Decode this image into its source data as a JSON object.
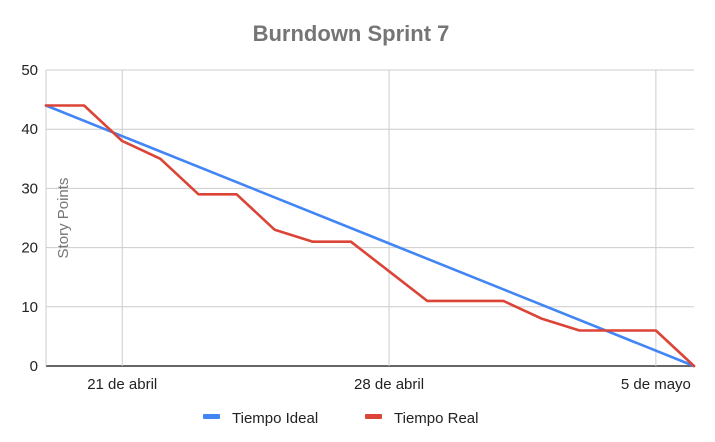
{
  "chart_data": {
    "type": "line",
    "title": "Burndown Sprint 7",
    "xlabel": "",
    "ylabel": "Story Points",
    "x_range": [
      "2024-04-18",
      "2024-05-05"
    ],
    "ylim": [
      0,
      50
    ],
    "y_ticks": [
      0,
      10,
      20,
      30,
      40,
      50
    ],
    "x_ticks": [
      {
        "label": "21 de abril",
        "x": "2024-04-20"
      },
      {
        "label": "28 de abril",
        "x": "2024-04-27"
      },
      {
        "label": "5 de mayo",
        "x": "2024-05-04"
      }
    ],
    "grid": true,
    "legend_position": "bottom",
    "series": [
      {
        "name": "Tiempo Ideal",
        "color": "#4285F4",
        "points": [
          [
            "2024-04-18",
            44
          ],
          [
            "2024-05-05",
            0
          ]
        ]
      },
      {
        "name": "Tiempo Real",
        "color": "#DB4437",
        "points": [
          [
            "2024-04-18",
            44
          ],
          [
            "2024-04-19",
            44
          ],
          [
            "2024-04-20",
            38
          ],
          [
            "2024-04-21",
            35
          ],
          [
            "2024-04-22",
            29
          ],
          [
            "2024-04-23",
            29
          ],
          [
            "2024-04-24",
            23
          ],
          [
            "2024-04-25",
            21
          ],
          [
            "2024-04-26",
            21
          ],
          [
            "2024-04-27",
            16
          ],
          [
            "2024-04-28",
            11
          ],
          [
            "2024-04-29",
            11
          ],
          [
            "2024-04-30",
            11
          ],
          [
            "2024-05-01",
            8
          ],
          [
            "2024-05-02",
            6
          ],
          [
            "2024-05-03",
            6
          ],
          [
            "2024-05-04",
            6
          ],
          [
            "2024-05-05",
            0
          ]
        ]
      }
    ]
  }
}
